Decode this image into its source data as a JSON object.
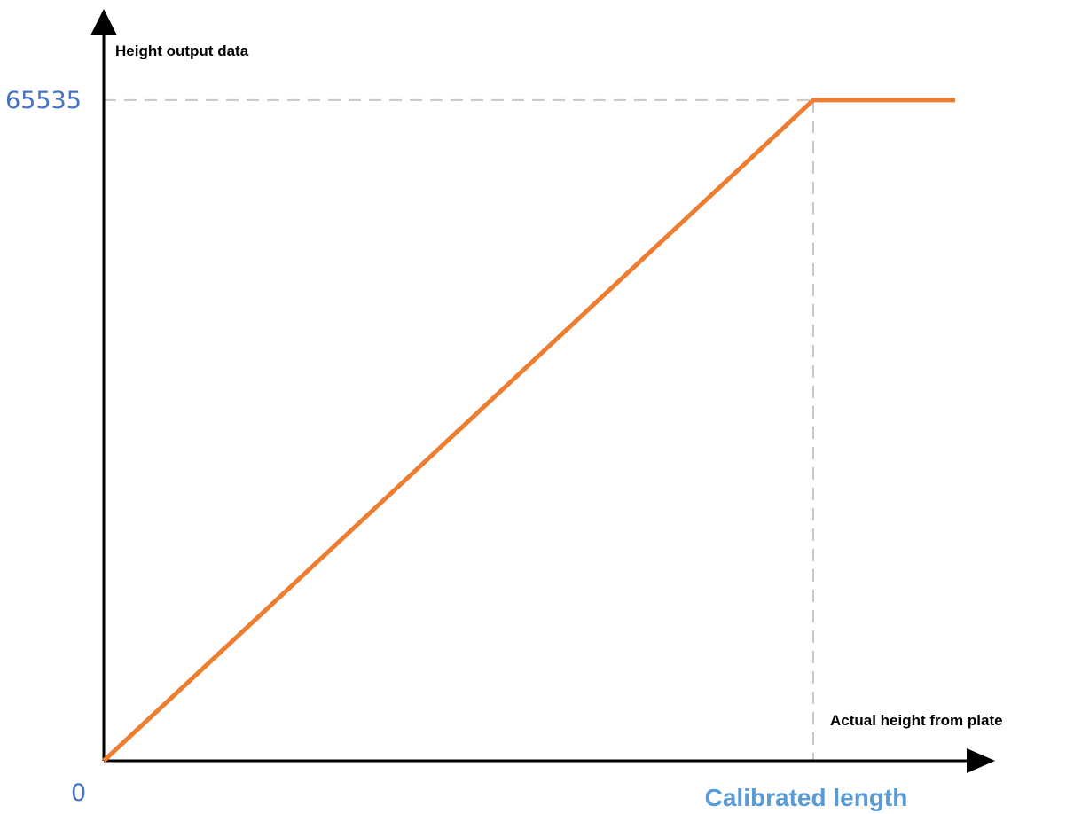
{
  "chart_data": {
    "type": "line",
    "ylabel": "Height output data",
    "xlabel": "Actual height from plate",
    "x_tick_labels": {
      "origin": "0",
      "calibrated": "Calibrated length"
    },
    "y_tick_labels": {
      "max": "65535"
    },
    "x_calibrated": 1,
    "y_max": 65535,
    "xlim": [
      0,
      1.25
    ],
    "ylim": [
      0,
      73000
    ],
    "series": [
      {
        "x": [
          0,
          1,
          1.2
        ],
        "y": [
          0,
          65535,
          65535
        ]
      }
    ],
    "grid": false,
    "colors": {
      "line": "#ED7D31",
      "tick_label": "#4472C4",
      "calibrated_label": "#5B9BD5",
      "guide": "#C8C8C8",
      "axis": "#000000"
    }
  }
}
